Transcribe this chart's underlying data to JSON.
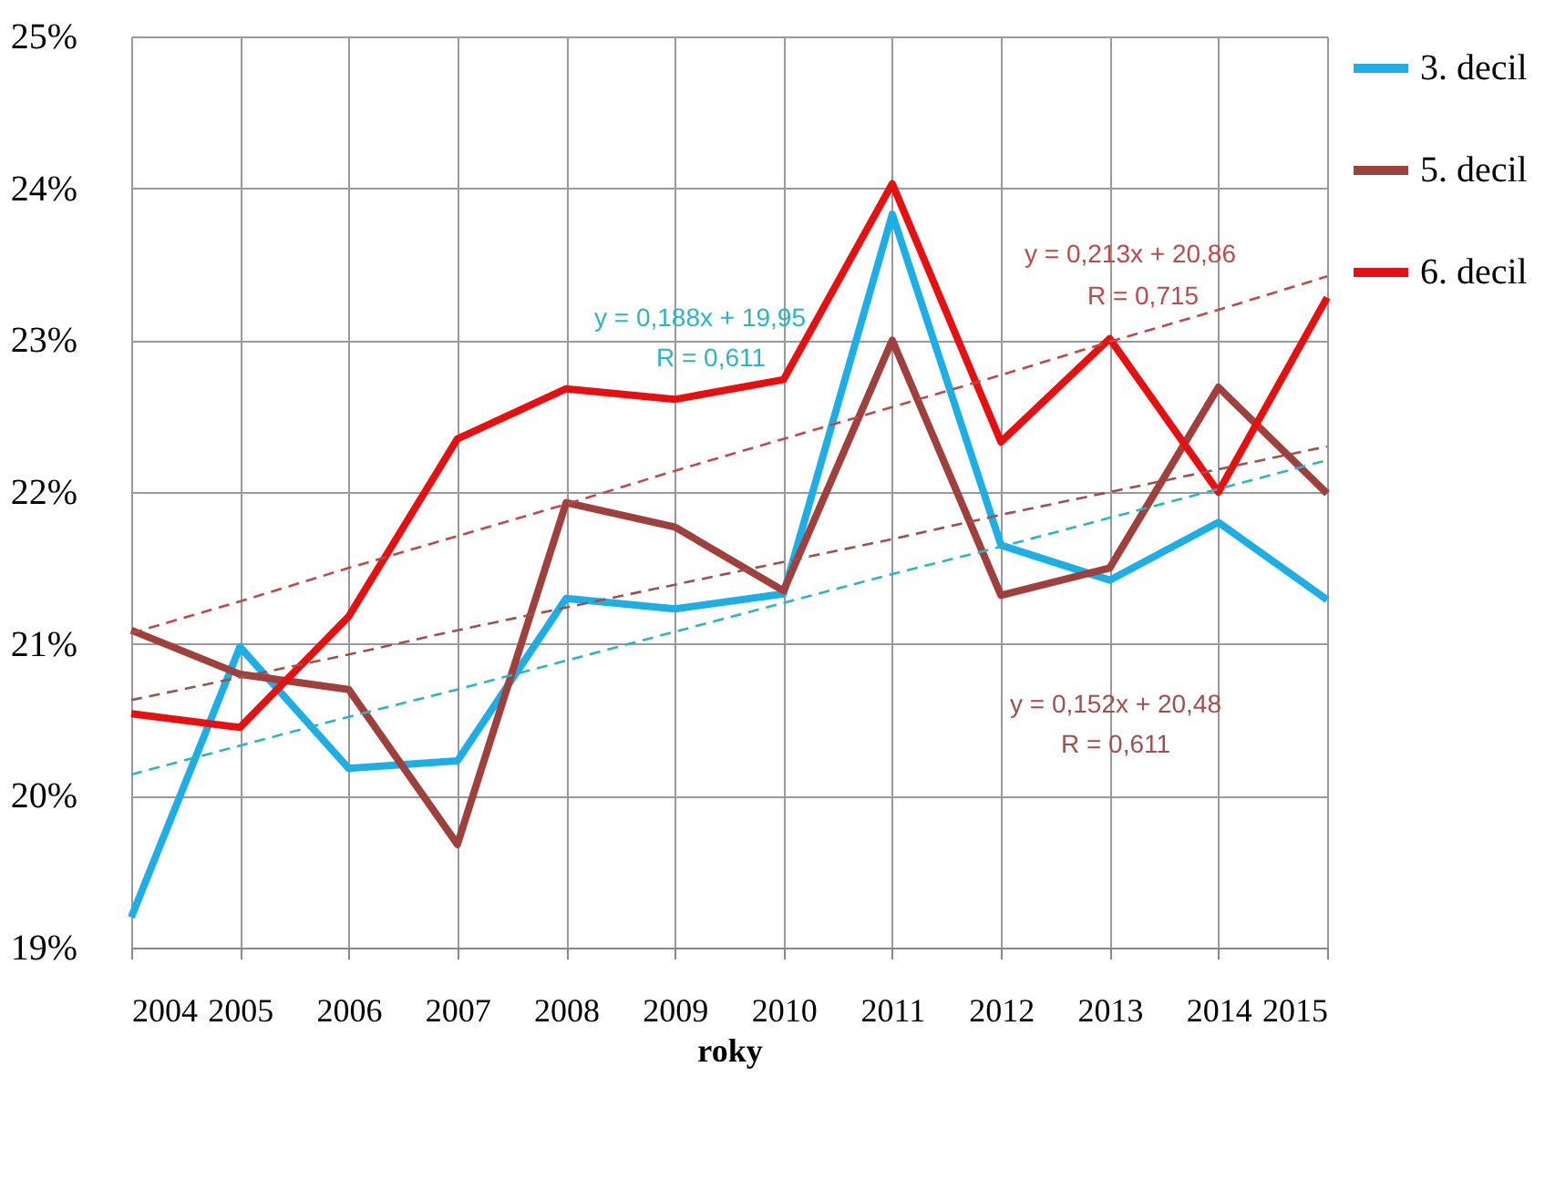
{
  "chart_data": {
    "type": "line",
    "xlabel": "roky",
    "x": [
      2004,
      2005,
      2006,
      2007,
      2008,
      2009,
      2010,
      2011,
      2012,
      2013,
      2014,
      2015
    ],
    "xlim": [
      2004,
      2015
    ],
    "xticks": [
      2004,
      2005,
      2006,
      2007,
      2008,
      2009,
      2010,
      2011,
      2012,
      2013,
      2014,
      2015
    ],
    "ylim": [
      19,
      25
    ],
    "yticks": [
      {
        "value": 19,
        "label": "19%"
      },
      {
        "value": 20,
        "label": "20%"
      },
      {
        "value": 21,
        "label": "21%"
      },
      {
        "value": 22,
        "label": "22%"
      },
      {
        "value": 23,
        "label": "23%"
      },
      {
        "value": 24,
        "label": "24%"
      },
      {
        "value": 25,
        "label": "25%"
      }
    ],
    "grid": true,
    "legend": "right",
    "marker": "none",
    "line_style": "solid",
    "series": [
      {
        "name": "3. decil",
        "color": "#1eaee6",
        "values": [
          19.2,
          20.98,
          20.18,
          20.23,
          21.3,
          21.23,
          21.33,
          23.83,
          21.65,
          21.42,
          21.8,
          21.29
        ]
      },
      {
        "name": "5. decil",
        "color": "#a0403c",
        "values": [
          21.09,
          20.8,
          20.7,
          19.68,
          21.93,
          21.77,
          21.35,
          23.0,
          21.32,
          21.5,
          22.69,
          21.99
        ]
      },
      {
        "name": "6. decil",
        "color": "#e61010",
        "values": [
          20.54,
          20.45,
          21.18,
          22.35,
          22.68,
          22.61,
          22.74,
          24.03,
          22.33,
          23.01,
          22.0,
          23.28
        ]
      },
      {
        "type": "line",
        "line_style": "dashed",
        "color": "#2bb5c0",
        "values": [
          20.14,
          20.33,
          20.52,
          20.7,
          20.89,
          21.08,
          21.27,
          21.46,
          21.64,
          21.83,
          22.02,
          22.21
        ]
      },
      {
        "type": "line",
        "line_style": "dashed",
        "color": "#c04848",
        "values": [
          21.07,
          21.28,
          21.5,
          21.71,
          21.92,
          22.14,
          22.35,
          22.56,
          22.77,
          22.99,
          23.2,
          23.42
        ]
      },
      {
        "type": "line",
        "line_style": "dashed",
        "color": "#a0504c",
        "values": [
          20.63,
          20.78,
          20.93,
          21.09,
          21.24,
          21.39,
          21.54,
          21.69,
          21.85,
          22.0,
          22.15,
          22.3
        ]
      }
    ],
    "annotations": [
      "y = 0,188x + 19,95",
      "R = 0,611",
      "y = 0,213x + 20,86",
      "R = 0,715",
      "y = 0,152x + 20,48",
      "R = 0,611"
    ]
  }
}
